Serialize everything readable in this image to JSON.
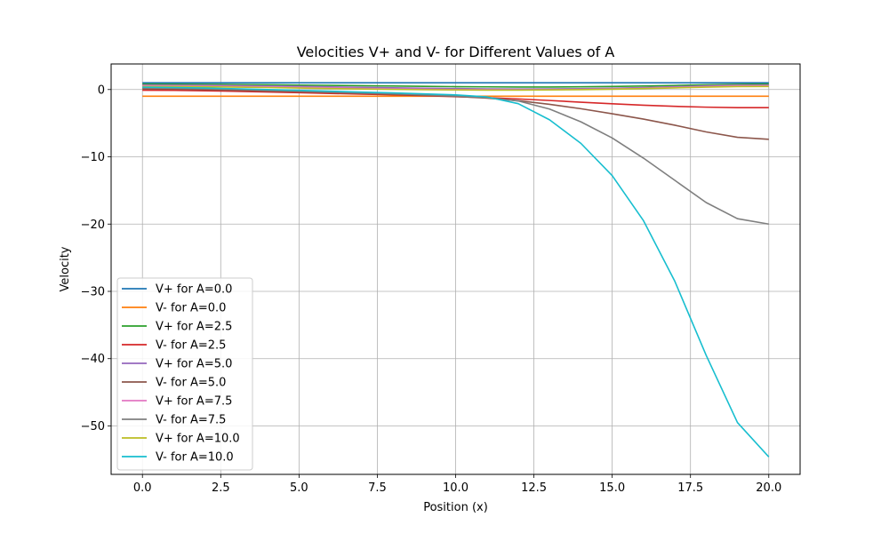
{
  "chart_data": {
    "type": "line",
    "title": "Velocities V+ and V- for Different Values of A",
    "xlabel": "Position (x)",
    "ylabel": "Velocity",
    "xlim": [
      -1.0,
      21.0
    ],
    "ylim": [
      -57.2,
      3.8
    ],
    "xticks": [
      0.0,
      2.5,
      5.0,
      7.5,
      10.0,
      12.5,
      15.0,
      17.5,
      20.0
    ],
    "xtick_labels": [
      "0.0",
      "2.5",
      "5.0",
      "7.5",
      "10.0",
      "12.5",
      "15.0",
      "17.5",
      "20.0"
    ],
    "yticks": [
      0,
      -10,
      -20,
      -30,
      -40,
      -50
    ],
    "ytick_labels": [
      "0",
      "−10",
      "−20",
      "−30",
      "−40",
      "−50"
    ],
    "grid": true,
    "legend_position": "lower-left",
    "x": [
      0,
      1,
      2,
      3,
      4,
      5,
      6,
      7,
      8,
      9,
      10,
      11,
      12,
      13,
      14,
      15,
      16,
      17,
      18,
      19,
      20
    ],
    "series": [
      {
        "name": "V+ for A=0.0",
        "color": "#1f77b4",
        "values": [
          1.0,
          1.0,
          1.0,
          1.0,
          1.0,
          1.0,
          1.0,
          1.0,
          1.0,
          1.0,
          1.0,
          1.0,
          1.0,
          1.0,
          1.0,
          1.0,
          1.0,
          1.0,
          1.0,
          1.0,
          1.0
        ]
      },
      {
        "name": "V- for A=0.0",
        "color": "#ff7f0e",
        "values": [
          -1.0,
          -1.0,
          -1.0,
          -1.0,
          -1.0,
          -1.0,
          -1.0,
          -1.0,
          -1.0,
          -1.0,
          -1.0,
          -1.0,
          -1.0,
          -1.0,
          -1.0,
          -1.0,
          -1.0,
          -1.0,
          -1.0,
          -1.0,
          -1.0
        ]
      },
      {
        "name": "V+ for A=2.5",
        "color": "#2ca02c",
        "values": [
          0.8,
          0.79,
          0.77,
          0.74,
          0.7,
          0.66,
          0.62,
          0.57,
          0.52,
          0.47,
          0.43,
          0.4,
          0.38,
          0.38,
          0.41,
          0.46,
          0.53,
          0.61,
          0.7,
          0.77,
          0.8
        ]
      },
      {
        "name": "V- for A=2.5",
        "color": "#d62728",
        "values": [
          -0.1,
          -0.12,
          -0.18,
          -0.27,
          -0.37,
          -0.47,
          -0.58,
          -0.68,
          -0.79,
          -0.92,
          -1.06,
          -1.2,
          -1.4,
          -1.63,
          -1.88,
          -2.12,
          -2.33,
          -2.5,
          -2.62,
          -2.69,
          -2.7
        ]
      },
      {
        "name": "V+ for A=5.0",
        "color": "#9467bd",
        "values": [
          0.65,
          0.64,
          0.62,
          0.58,
          0.53,
          0.47,
          0.4,
          0.33,
          0.26,
          0.2,
          0.14,
          0.1,
          0.08,
          0.09,
          0.13,
          0.2,
          0.3,
          0.42,
          0.55,
          0.64,
          0.66
        ]
      },
      {
        "name": "V- for A=5.0",
        "color": "#8c564b",
        "values": [
          0.1,
          0.06,
          -0.02,
          -0.12,
          -0.23,
          -0.35,
          -0.47,
          -0.59,
          -0.72,
          -0.87,
          -1.03,
          -1.28,
          -1.65,
          -2.2,
          -2.85,
          -3.6,
          -4.4,
          -5.3,
          -6.3,
          -7.1,
          -7.4
        ]
      },
      {
        "name": "V+ for A=7.5",
        "color": "#e377c2",
        "values": [
          0.55,
          0.54,
          0.51,
          0.46,
          0.4,
          0.33,
          0.25,
          0.17,
          0.1,
          0.04,
          0.0,
          -0.02,
          -0.03,
          -0.02,
          0.03,
          0.1,
          0.2,
          0.32,
          0.45,
          0.55,
          0.58
        ]
      },
      {
        "name": "V- for A=7.5",
        "color": "#7f7f7f",
        "values": [
          0.25,
          0.2,
          0.12,
          0.02,
          -0.1,
          -0.22,
          -0.35,
          -0.48,
          -0.62,
          -0.78,
          -0.95,
          -1.2,
          -1.7,
          -2.9,
          -4.8,
          -7.2,
          -10.2,
          -13.5,
          -16.8,
          -19.2,
          -20.0
        ]
      },
      {
        "name": "V+ for A=10.0",
        "color": "#bcbd22",
        "values": [
          0.45,
          0.44,
          0.41,
          0.36,
          0.3,
          0.23,
          0.15,
          0.08,
          0.02,
          -0.03,
          -0.06,
          -0.08,
          -0.08,
          -0.06,
          -0.02,
          0.05,
          0.14,
          0.25,
          0.36,
          0.44,
          0.46
        ]
      },
      {
        "name": "V- for A=10.0",
        "color": "#17becf",
        "values": [
          0.35,
          0.3,
          0.22,
          0.12,
          0.0,
          -0.12,
          -0.25,
          -0.38,
          -0.5,
          -0.65,
          -0.8,
          -1.1,
          -2.1,
          -4.5,
          -8.0,
          -12.8,
          -19.5,
          -28.5,
          -39.5,
          -49.5,
          -54.6
        ]
      }
    ]
  }
}
